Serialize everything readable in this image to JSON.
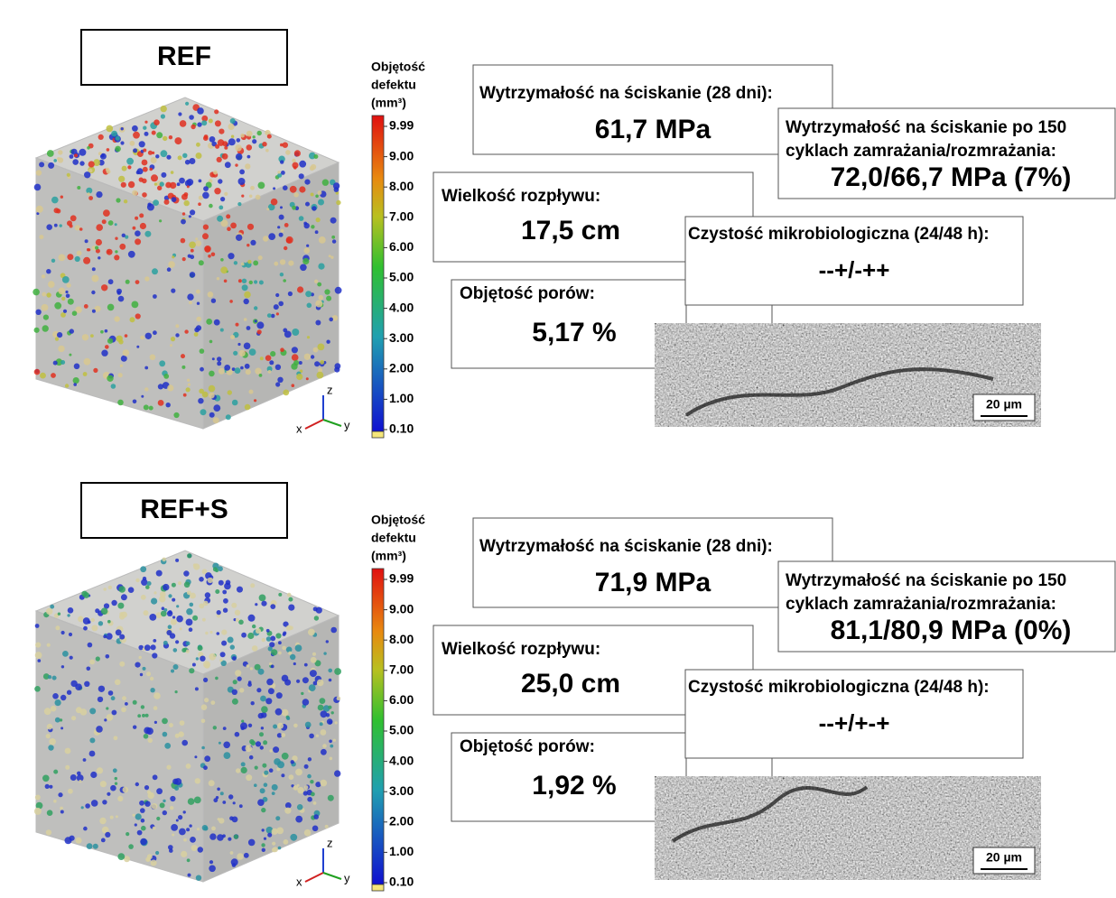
{
  "panels": [
    {
      "label": "REF",
      "colorbar": {
        "title": [
          "Objętość",
          "defektu",
          "(mm³)"
        ],
        "ticks": [
          "9.99",
          "9.00",
          "8.00",
          "7.00",
          "6.00",
          "5.00",
          "4.00",
          "3.00",
          "2.00",
          "1.00",
          "0.10"
        ]
      },
      "axes": [
        "z",
        "x",
        "y"
      ],
      "compressive_strength": {
        "title": "Wytrzymałość na ściskanie (28 dni):",
        "value": "61,7 MPa"
      },
      "freeze_thaw": {
        "title": [
          "Wytrzymałość na ściskanie po 150",
          "cyklach zamrażania/rozmrażania:"
        ],
        "value": "72,0/66,7 MPa (7%)"
      },
      "flow": {
        "title": "Wielkość rozpływu:",
        "value": "17,5 cm"
      },
      "microbiological": {
        "title": "Czystość mikrobiologiczna (24/48 h):",
        "value": "--+/-++"
      },
      "porosity": {
        "title": "Objętość porów:",
        "value": "5,17 %"
      },
      "scale_bar": "20 µm"
    },
    {
      "label": "REF+S",
      "colorbar": {
        "title": [
          "Objętość",
          "defektu",
          "(mm³)"
        ],
        "ticks": [
          "9.99",
          "9.00",
          "8.00",
          "7.00",
          "6.00",
          "5.00",
          "4.00",
          "3.00",
          "2.00",
          "1.00",
          "0.10"
        ]
      },
      "axes": [
        "z",
        "x",
        "y"
      ],
      "compressive_strength": {
        "title": "Wytrzymałość na ściskanie (28 dni):",
        "value": "71,9 MPa"
      },
      "freeze_thaw": {
        "title": [
          "Wytrzymałość na ściskanie po 150",
          "cyklach zamrażania/rozmrażania:"
        ],
        "value": "81,1/80,9 MPa (0%)"
      },
      "flow": {
        "title": "Wielkość rozpływu:",
        "value": "25,0 cm"
      },
      "microbiological": {
        "title": "Czystość mikrobiologiczna (24/48 h):",
        "value": "--+/+-+"
      },
      "porosity": {
        "title": "Objętość porów:",
        "value": "1,92 %"
      },
      "scale_bar": "20 µm"
    }
  ]
}
